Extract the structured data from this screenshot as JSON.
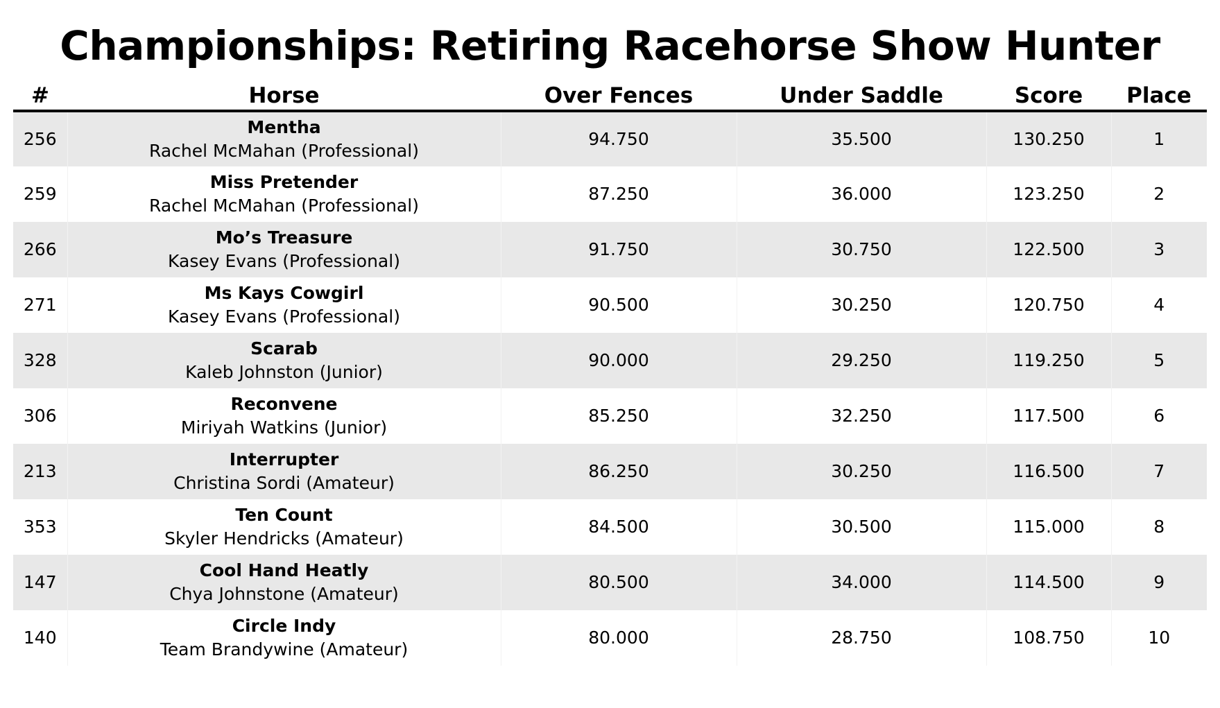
{
  "title": "Championships: Retiring Racehorse Show Hunter",
  "columns": [
    "#",
    "Horse",
    "Over Fences",
    "Under Saddle",
    "Score",
    "Place"
  ],
  "rows": [
    {
      "num": "256",
      "horse": "Mentha",
      "rider": "Rachel McMahan (Professional)",
      "over_fences": "94.750",
      "under_saddle": "35.500",
      "score": "130.250",
      "place": "1"
    },
    {
      "num": "259",
      "horse": "Miss Pretender",
      "rider": "Rachel McMahan (Professional)",
      "over_fences": "87.250",
      "under_saddle": "36.000",
      "score": "123.250",
      "place": "2"
    },
    {
      "num": "266",
      "horse": "Mo’s Treasure",
      "rider": "Kasey Evans (Professional)",
      "over_fences": "91.750",
      "under_saddle": "30.750",
      "score": "122.500",
      "place": "3"
    },
    {
      "num": "271",
      "horse": "Ms Kays Cowgirl",
      "rider": "Kasey Evans (Professional)",
      "over_fences": "90.500",
      "under_saddle": "30.250",
      "score": "120.750",
      "place": "4"
    },
    {
      "num": "328",
      "horse": "Scarab",
      "rider": "Kaleb Johnston (Junior)",
      "over_fences": "90.000",
      "under_saddle": "29.250",
      "score": "119.250",
      "place": "5"
    },
    {
      "num": "306",
      "horse": "Reconvene",
      "rider": "Miriyah Watkins (Junior)",
      "over_fences": "85.250",
      "under_saddle": "32.250",
      "score": "117.500",
      "place": "6"
    },
    {
      "num": "213",
      "horse": "Interrupter",
      "rider": "Christina Sordi (Amateur)",
      "over_fences": "86.250",
      "under_saddle": "30.250",
      "score": "116.500",
      "place": "7"
    },
    {
      "num": "353",
      "horse": "Ten Count",
      "rider": "Skyler Hendricks (Amateur)",
      "over_fences": "84.500",
      "under_saddle": "30.500",
      "score": "115.000",
      "place": "8"
    },
    {
      "num": "147",
      "horse": "Cool Hand Heatly",
      "rider": "Chya Johnstone (Amateur)",
      "over_fences": "80.500",
      "under_saddle": "34.000",
      "score": "114.500",
      "place": "9"
    },
    {
      "num": "140",
      "horse": "Circle Indy",
      "rider": "Team Brandywine (Amateur)",
      "over_fences": "80.000",
      "under_saddle": "28.750",
      "score": "108.750",
      "place": "10"
    }
  ]
}
